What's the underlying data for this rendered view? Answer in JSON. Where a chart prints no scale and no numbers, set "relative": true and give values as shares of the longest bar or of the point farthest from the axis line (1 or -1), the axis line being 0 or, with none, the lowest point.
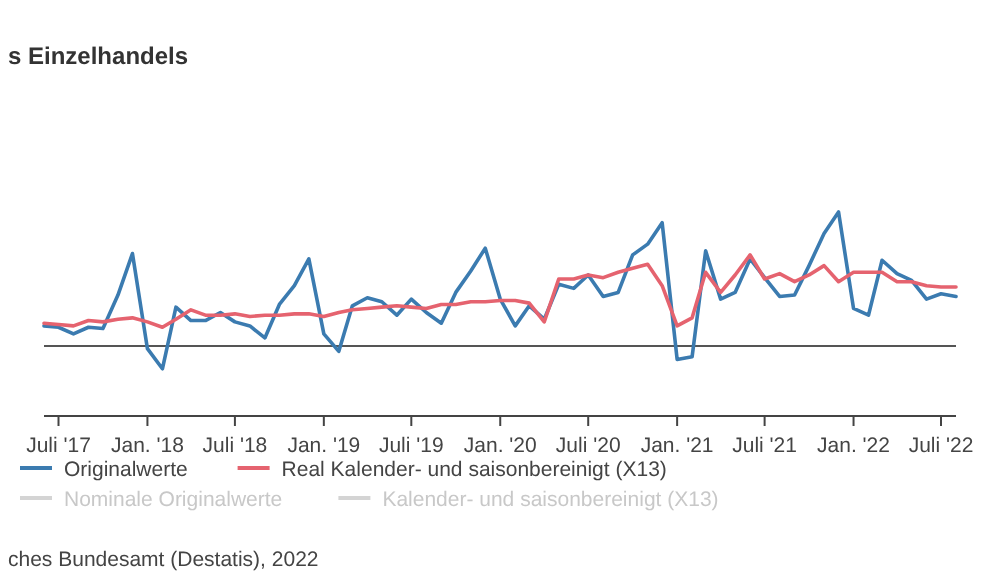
{
  "chart_data": {
    "type": "line",
    "title": "s Einzelhandels",
    "relative": true,
    "x": [
      "2017-06",
      "2017-07",
      "2017-08",
      "2017-09",
      "2017-10",
      "2017-11",
      "2017-12",
      "2018-01",
      "2018-02",
      "2018-03",
      "2018-04",
      "2018-05",
      "2018-06",
      "2018-07",
      "2018-08",
      "2018-09",
      "2018-10",
      "2018-11",
      "2018-12",
      "2019-01",
      "2019-02",
      "2019-03",
      "2019-04",
      "2019-05",
      "2019-06",
      "2019-07",
      "2019-08",
      "2019-09",
      "2019-10",
      "2019-11",
      "2019-12",
      "2020-01",
      "2020-02",
      "2020-03",
      "2020-04",
      "2020-05",
      "2020-06",
      "2020-07",
      "2020-08",
      "2020-09",
      "2020-10",
      "2020-11",
      "2020-12",
      "2021-01",
      "2021-02",
      "2021-03",
      "2021-04",
      "2021-05",
      "2021-06",
      "2021-07",
      "2021-08",
      "2021-09",
      "2021-10",
      "2021-11",
      "2021-12",
      "2022-01",
      "2022-02",
      "2022-03",
      "2022-04",
      "2022-05",
      "2022-06",
      "2022-07",
      "2022-08"
    ],
    "xlim": [
      "2017-06",
      "2022-08"
    ],
    "xticks": [
      {
        "value": "2017-07",
        "label": "Juli '17"
      },
      {
        "value": "2018-01",
        "label": "Jan. '18"
      },
      {
        "value": "2018-07",
        "label": "Juli '18"
      },
      {
        "value": "2019-01",
        "label": "Jan. '19"
      },
      {
        "value": "2019-07",
        "label": "Juli '19"
      },
      {
        "value": "2020-01",
        "label": "Jan. '20"
      },
      {
        "value": "2020-07",
        "label": "Juli '20"
      },
      {
        "value": "2021-01",
        "label": "Jan. '21"
      },
      {
        "value": "2021-07",
        "label": "Juli '21"
      },
      {
        "value": "2022-01",
        "label": "Jan. '22"
      },
      {
        "value": "2022-07",
        "label": "Juli '22"
      }
    ],
    "series": [
      {
        "name": "Originalwerte",
        "color": "#3b7bb0",
        "values": [
          0.15,
          0.14,
          0.09,
          0.14,
          0.13,
          0.38,
          0.69,
          -0.02,
          -0.17,
          0.29,
          0.19,
          0.19,
          0.25,
          0.18,
          0.15,
          0.06,
          0.31,
          0.45,
          0.65,
          0.09,
          -0.04,
          0.3,
          0.36,
          0.33,
          0.23,
          0.35,
          0.25,
          0.17,
          0.4,
          0.56,
          0.73,
          0.35,
          0.15,
          0.3,
          0.2,
          0.46,
          0.43,
          0.53,
          0.37,
          0.4,
          0.68,
          0.76,
          0.92,
          -0.1,
          -0.08,
          0.71,
          0.35,
          0.4,
          0.65,
          0.51,
          0.37,
          0.38,
          0.6,
          0.84,
          1,
          0.28,
          0.23,
          0.64,
          0.54,
          0.49,
          0.35,
          0.39,
          0.37
        ]
      },
      {
        "name": "Real Kalender- und saisonbereinigt (X13)",
        "color": "#e5636f",
        "values": [
          0.17,
          0.16,
          0.15,
          0.19,
          0.18,
          0.2,
          0.21,
          0.18,
          0.14,
          0.2,
          0.27,
          0.23,
          0.23,
          0.24,
          0.22,
          0.23,
          0.23,
          0.24,
          0.24,
          0.22,
          0.25,
          0.27,
          0.28,
          0.29,
          0.3,
          0.29,
          0.28,
          0.31,
          0.31,
          0.33,
          0.33,
          0.34,
          0.34,
          0.32,
          0.18,
          0.5,
          0.5,
          0.53,
          0.51,
          0.55,
          0.58,
          0.61,
          0.45,
          0.15,
          0.21,
          0.55,
          0.4,
          0.53,
          0.68,
          0.5,
          0.54,
          0.48,
          0.53,
          0.6,
          0.48,
          0.55,
          0.55,
          0.55,
          0.48,
          0.48,
          0.45,
          0.44,
          0.44
        ]
      },
      {
        "name": "Nominale Originalwerte",
        "color": "#d4d4d4",
        "values": [
          null,
          null,
          null,
          null,
          null,
          null,
          null,
          null,
          null,
          null,
          null,
          null,
          null,
          null,
          null,
          null,
          null,
          null,
          null,
          null,
          null,
          null,
          null,
          null,
          null,
          null,
          null,
          null,
          null,
          null,
          null,
          null,
          null,
          null,
          null,
          null,
          null,
          null,
          null,
          null,
          null,
          null,
          null,
          null,
          null,
          null,
          null,
          null,
          null,
          null,
          null,
          null,
          null,
          null,
          null,
          null,
          null,
          null,
          null,
          null,
          null,
          null,
          null
        ]
      },
      {
        "name": "Kalender- und saisonbereinigt (X13)",
        "color": "#d4d4d4",
        "values": [
          null,
          null,
          null,
          null,
          null,
          null,
          null,
          null,
          null,
          null,
          null,
          null,
          null,
          null,
          null,
          null,
          null,
          null,
          null,
          null,
          null,
          null,
          null,
          null,
          null,
          null,
          null,
          null,
          null,
          null,
          null,
          null,
          null,
          null,
          null,
          null,
          null,
          null,
          null,
          null,
          null,
          null,
          null,
          null,
          null,
          null,
          null,
          null,
          null,
          null,
          null,
          null,
          null,
          null,
          null,
          null,
          null,
          null,
          null,
          null,
          null,
          null,
          null
        ]
      }
    ],
    "legend": "bottom",
    "annotations": [
      "ches Bundesamt (Destatis), 2022"
    ]
  }
}
